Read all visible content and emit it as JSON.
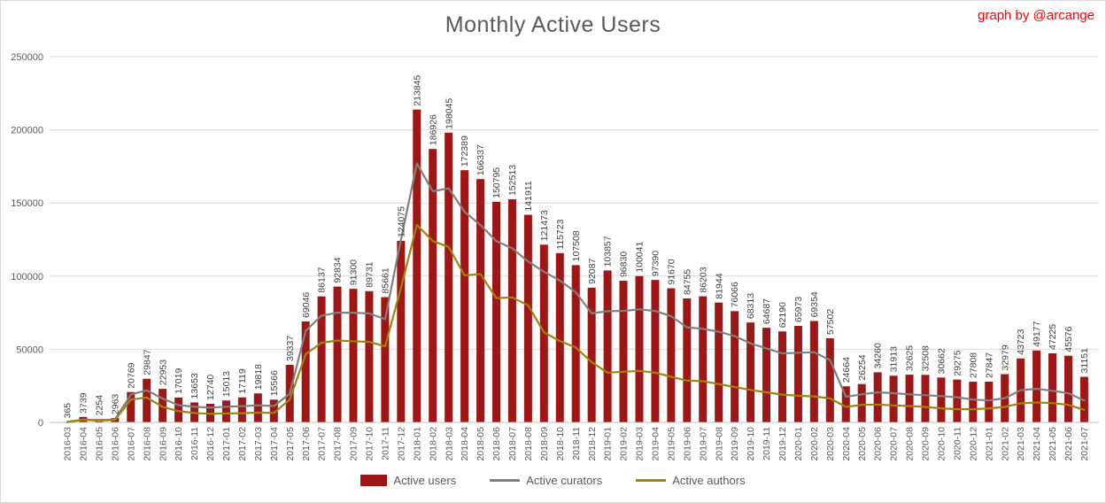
{
  "header": {
    "title": "Monthly Active Users",
    "credit": "graph by @arcange"
  },
  "colors": {
    "bar": "#9E1616",
    "curators": "#808080",
    "authors": "#9C840F",
    "grid": "#D9D9D9",
    "axis": "#BFBFBF",
    "bar_label": "#404040",
    "tick": "#595959",
    "title": "#595959",
    "legend_text": "#595959",
    "credit": "#FF0000",
    "background": "#FFFFFF"
  },
  "legend": [
    {
      "label": "Active users",
      "swatch": "bar",
      "color": "#9E1616"
    },
    {
      "label": "Active curators",
      "swatch": "line",
      "color": "#808080"
    },
    {
      "label": "Active authors",
      "swatch": "line",
      "color": "#9C840F"
    }
  ],
  "chart_data": {
    "type": "bar",
    "title": "Monthly Active Users",
    "xlabel": "",
    "ylabel": "",
    "ylim": [
      0,
      250000
    ],
    "yticks": [
      0,
      50000,
      100000,
      150000,
      200000,
      250000
    ],
    "grid": true,
    "legend_position": "bottom",
    "bar_labels": true,
    "categories": [
      "2016-03",
      "2016-04",
      "2016-05",
      "2016-06",
      "2016-07",
      "2016-08",
      "2016-09",
      "2016-10",
      "2016-11",
      "2016-12",
      "2017-01",
      "2017-02",
      "2017-03",
      "2017-04",
      "2017-05",
      "2017-06",
      "2017-07",
      "2017-08",
      "2017-09",
      "2017-10",
      "2017-11",
      "2017-12",
      "2018-01",
      "2018-02",
      "2018-03",
      "2018-04",
      "2018-05",
      "2018-06",
      "2018-07",
      "2018-08",
      "2018-09",
      "2018-10",
      "2018-11",
      "2018-12",
      "2019-01",
      "2019-02",
      "2019-03",
      "2019-04",
      "2019-05",
      "2019-06",
      "2019-07",
      "2019-08",
      "2019-09",
      "2019-10",
      "2019-11",
      "2019-12",
      "2020-01",
      "2020-02",
      "2020-03",
      "2020-04",
      "2020-05",
      "2020-06",
      "2020-07",
      "2020-08",
      "2020-09",
      "2020-10",
      "2020-11",
      "2020-12",
      "2021-01",
      "2021-02",
      "2021-03",
      "2021-04",
      "2021-05",
      "2021-06",
      "2021-07"
    ],
    "series": [
      {
        "name": "Active users",
        "type": "bar",
        "color": "#9E1616",
        "values": [
          365,
          3739,
          2254,
          2963,
          20769,
          29847,
          22953,
          17019,
          13653,
          12740,
          15013,
          17119,
          19818,
          15566,
          39337,
          69046,
          86137,
          92834,
          91300,
          89731,
          85661,
          124075,
          213845,
          186926,
          198045,
          172389,
          166337,
          150795,
          152513,
          141911,
          121473,
          115723,
          107508,
          92087,
          103857,
          96830,
          100041,
          97390,
          91670,
          84755,
          86203,
          81944,
          76066,
          68313,
          64687,
          62190,
          65973,
          69354,
          57502,
          24664,
          26254,
          34260,
          31913,
          32625,
          32508,
          30662,
          29275,
          27808,
          27847,
          32979,
          43723,
          49177,
          47225,
          45576,
          31151
        ]
      },
      {
        "name": "Active curators",
        "type": "line",
        "color": "#808080",
        "values_estimated": true,
        "values": [
          300,
          2000,
          1500,
          2000,
          19000,
          22000,
          16300,
          11800,
          10700,
          10100,
          10700,
          11100,
          11700,
          11200,
          19600,
          62600,
          73000,
          75000,
          75000,
          74500,
          70600,
          125000,
          177000,
          158000,
          160000,
          144000,
          135000,
          124000,
          119000,
          110000,
          103000,
          97000,
          89000,
          74500,
          76000,
          76200,
          77300,
          76200,
          72600,
          65000,
          64000,
          62000,
          59000,
          54000,
          50600,
          47200,
          47600,
          48000,
          42600,
          17500,
          19200,
          20600,
          20000,
          19200,
          18600,
          18000,
          17200,
          15600,
          15000,
          16600,
          22000,
          23000,
          21600,
          20000,
          15000
        ]
      },
      {
        "name": "Active authors",
        "type": "line",
        "color": "#9C840F",
        "values_estimated": true,
        "values": [
          250,
          1800,
          1200,
          1700,
          15600,
          17000,
          10600,
          7700,
          6400,
          5900,
          6100,
          6300,
          6700,
          6500,
          15600,
          46600,
          54500,
          56000,
          55500,
          55000,
          52000,
          92000,
          135000,
          124000,
          120000,
          100500,
          101500,
          85000,
          85500,
          80000,
          61600,
          55600,
          51200,
          41200,
          34000,
          34600,
          35200,
          34000,
          31200,
          28600,
          28200,
          26200,
          24200,
          22200,
          20600,
          19000,
          18200,
          17800,
          16400,
          10600,
          12000,
          12200,
          11600,
          11200,
          10600,
          9600,
          9000,
          9000,
          9600,
          10600,
          13000,
          13600,
          13200,
          12000,
          8600
        ]
      }
    ]
  }
}
